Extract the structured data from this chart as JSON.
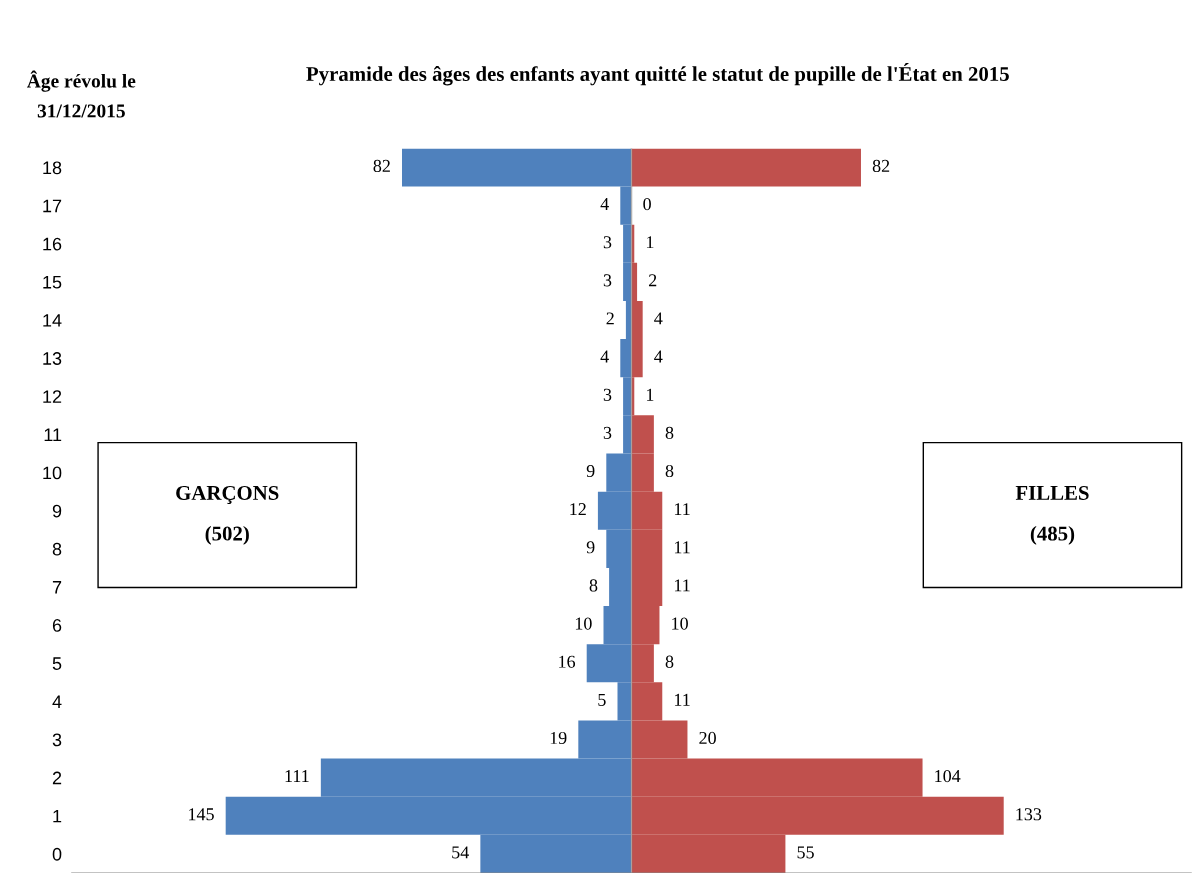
{
  "chart_data": [
    {
      "type": "bar",
      "orientation": "horizontal",
      "title": "Pyramide des âges des enfants ayant quitté le statut de pupille de l'État en 2015",
      "ylabel": "Âge révolu le 31/12/2015",
      "categories": [
        "18",
        "17",
        "16",
        "15",
        "14",
        "13",
        "12",
        "11",
        "10",
        "9",
        "8",
        "7",
        "6",
        "5",
        "4",
        "3",
        "2",
        "1",
        "0"
      ],
      "series": [
        {
          "color": "#4f81bd",
          "values": [
            82,
            4,
            3,
            3,
            2,
            4,
            3,
            3,
            9,
            12,
            9,
            8,
            10,
            16,
            5,
            19,
            111,
            145,
            54
          ]
        }
      ],
      "data_labels": true,
      "xlim": [
        200,
        0
      ],
      "tick_labels": "y",
      "legend": false,
      "annotations": [
        "GARÇONS\n\n(502)"
      ]
    },
    {
      "type": "bar",
      "orientation": "horizontal",
      "categories": [
        "18",
        "17",
        "16",
        "15",
        "14",
        "13",
        "12",
        "11",
        "10",
        "9",
        "8",
        "7",
        "6",
        "5",
        "4",
        "3",
        "2",
        "1",
        "0"
      ],
      "series": [
        {
          "color": "#c0504d",
          "values": [
            82,
            0,
            1,
            2,
            4,
            4,
            1,
            8,
            8,
            11,
            11,
            11,
            10,
            8,
            11,
            20,
            104,
            133,
            55
          ]
        }
      ],
      "data_labels": true,
      "xlim": [
        0,
        200
      ],
      "tick_labels": false,
      "legend": false,
      "annotations": [
        "FILLES\n\n(485)"
      ]
    }
  ]
}
